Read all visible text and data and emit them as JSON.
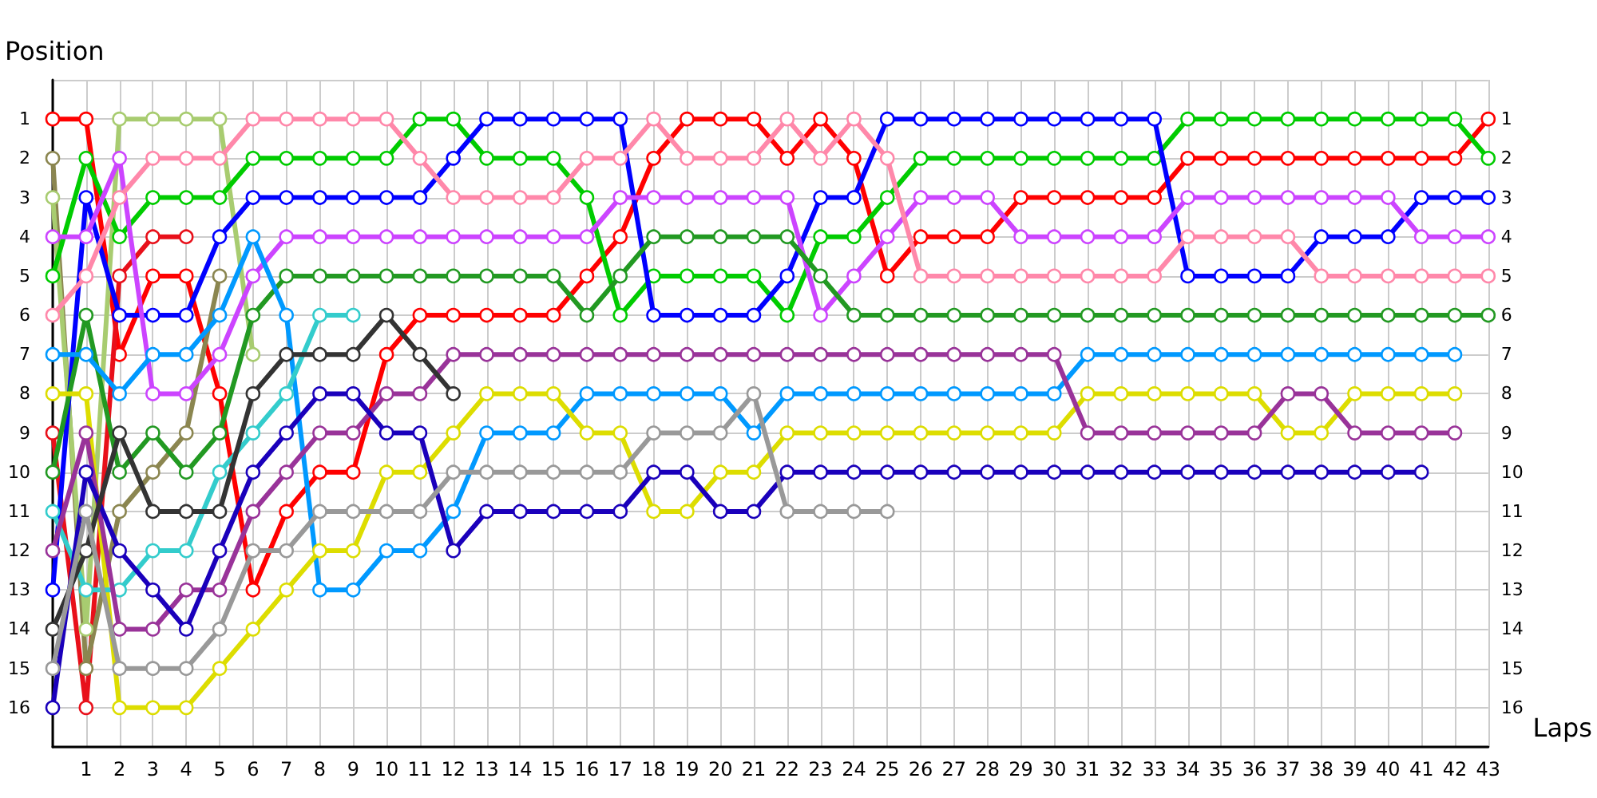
{
  "chart_data": {
    "type": "line",
    "xlabel": "Laps",
    "ylabel": "Position",
    "x": [
      0,
      1,
      2,
      3,
      4,
      5,
      6,
      7,
      8,
      9,
      10,
      11,
      12,
      13,
      14,
      15,
      16,
      17,
      18,
      19,
      20,
      21,
      22,
      23,
      24,
      25,
      26,
      27,
      28,
      29,
      30,
      31,
      32,
      33,
      34,
      35,
      36,
      37,
      38,
      39,
      40,
      41,
      42,
      43
    ],
    "xlim": [
      0,
      43
    ],
    "xticks": [
      1,
      2,
      3,
      4,
      5,
      6,
      7,
      8,
      9,
      10,
      11,
      12,
      13,
      14,
      15,
      16,
      17,
      18,
      19,
      20,
      21,
      22,
      23,
      24,
      25,
      26,
      27,
      28,
      29,
      30,
      31,
      32,
      33,
      34,
      35,
      36,
      37,
      38,
      39,
      40,
      41,
      42,
      43
    ],
    "ylim": [
      17,
      0
    ],
    "yticks": [
      1,
      2,
      3,
      4,
      5,
      6,
      7,
      8,
      9,
      10,
      11,
      12,
      13,
      14,
      15,
      16
    ],
    "y2lim": [
      17,
      0
    ],
    "y2ticks": [
      1,
      2,
      3,
      4,
      5,
      6,
      7,
      8,
      9,
      10,
      11,
      12,
      13,
      14,
      15,
      16
    ],
    "grid": true,
    "marker": "circle",
    "line_style": "solid",
    "series": [
      {
        "color": "#ff0000",
        "values": [
          1,
          1,
          7,
          5,
          5,
          8,
          13,
          11,
          10,
          10,
          7,
          6,
          6,
          6,
          6,
          6,
          5,
          4,
          2,
          1,
          1,
          1,
          2,
          1,
          2,
          5,
          4,
          4,
          4,
          3,
          3,
          3,
          3,
          3,
          2,
          2,
          2,
          2,
          2,
          2,
          2,
          2,
          2,
          1
        ]
      },
      {
        "color": "#e8101a",
        "values": [
          9,
          16,
          5,
          4,
          4,
          null,
          null,
          null,
          null,
          null,
          null,
          null,
          null,
          null,
          null,
          null,
          null,
          null,
          null,
          null,
          null,
          null,
          null,
          null,
          null,
          null,
          null,
          null,
          null,
          null,
          null,
          null,
          null,
          null,
          null,
          null,
          null,
          null,
          null,
          null,
          null,
          null,
          null,
          null
        ]
      },
      {
        "color": "#8b8650",
        "values": [
          2,
          15,
          11,
          10,
          9,
          5,
          null,
          null,
          null,
          null,
          null,
          null,
          null,
          null,
          null,
          null,
          null,
          null,
          null,
          null,
          null,
          null,
          null,
          null,
          null,
          null,
          null,
          null,
          null,
          null,
          null,
          null,
          null,
          null,
          null,
          null,
          null,
          null,
          null,
          null,
          null,
          null,
          null,
          null
        ]
      },
      {
        "color": "#a8cc70",
        "values": [
          3,
          14,
          1,
          1,
          1,
          1,
          7,
          null,
          null,
          null,
          null,
          null,
          null,
          null,
          null,
          null,
          null,
          null,
          null,
          null,
          null,
          null,
          null,
          null,
          null,
          null,
          null,
          null,
          null,
          null,
          null,
          null,
          null,
          null,
          null,
          null,
          null,
          null,
          null,
          null,
          null,
          null,
          null,
          null
        ]
      },
      {
        "color": "#00cc00",
        "values": [
          5,
          2,
          4,
          3,
          3,
          3,
          2,
          2,
          2,
          2,
          2,
          1,
          1,
          2,
          2,
          2,
          3,
          6,
          5,
          5,
          5,
          5,
          6,
          4,
          4,
          3,
          2,
          2,
          2,
          2,
          2,
          2,
          2,
          2,
          1,
          1,
          1,
          1,
          1,
          1,
          1,
          1,
          1,
          2
        ]
      },
      {
        "color": "#0000ff",
        "values": [
          13,
          3,
          6,
          6,
          6,
          4,
          3,
          3,
          3,
          3,
          3,
          3,
          2,
          1,
          1,
          1,
          1,
          1,
          6,
          6,
          6,
          6,
          5,
          3,
          3,
          1,
          1,
          1,
          1,
          1,
          1,
          1,
          1,
          1,
          5,
          5,
          5,
          5,
          4,
          4,
          4,
          3,
          3,
          3
        ]
      },
      {
        "color": "#cc44ff",
        "values": [
          4,
          4,
          2,
          8,
          8,
          7,
          5,
          4,
          4,
          4,
          4,
          4,
          4,
          4,
          4,
          4,
          4,
          3,
          3,
          3,
          3,
          3,
          3,
          6,
          5,
          4,
          3,
          3,
          3,
          4,
          4,
          4,
          4,
          4,
          3,
          3,
          3,
          3,
          3,
          3,
          3,
          4,
          4,
          4
        ]
      },
      {
        "color": "#ff88aa",
        "values": [
          6,
          5,
          3,
          2,
          2,
          2,
          1,
          1,
          1,
          1,
          1,
          2,
          3,
          3,
          3,
          3,
          2,
          2,
          1,
          2,
          2,
          2,
          1,
          2,
          1,
          2,
          5,
          5,
          5,
          5,
          5,
          5,
          5,
          5,
          4,
          4,
          4,
          4,
          5,
          5,
          5,
          5,
          5,
          5
        ]
      },
      {
        "color": "#229922",
        "values": [
          10,
          6,
          10,
          9,
          10,
          9,
          6,
          5,
          5,
          5,
          5,
          5,
          5,
          5,
          5,
          5,
          6,
          5,
          4,
          4,
          4,
          4,
          4,
          5,
          6,
          6,
          6,
          6,
          6,
          6,
          6,
          6,
          6,
          6,
          6,
          6,
          6,
          6,
          6,
          6,
          6,
          6,
          6,
          6
        ]
      },
      {
        "color": "#0099ff",
        "values": [
          7,
          7,
          8,
          7,
          7,
          6,
          4,
          6,
          13,
          13,
          12,
          12,
          11,
          9,
          9,
          9,
          8,
          8,
          8,
          8,
          8,
          9,
          8,
          8,
          8,
          8,
          8,
          8,
          8,
          8,
          8,
          7,
          7,
          7,
          7,
          7,
          7,
          7,
          7,
          7,
          7,
          7,
          7,
          null
        ]
      },
      {
        "color": "#dddd00",
        "values": [
          8,
          8,
          16,
          16,
          16,
          15,
          14,
          13,
          12,
          12,
          10,
          10,
          9,
          8,
          8,
          8,
          9,
          9,
          11,
          11,
          10,
          10,
          9,
          9,
          9,
          9,
          9,
          9,
          9,
          9,
          9,
          8,
          8,
          8,
          8,
          8,
          8,
          9,
          9,
          8,
          8,
          8,
          8,
          null
        ]
      },
      {
        "color": "#33cccc",
        "values": [
          11,
          13,
          13,
          12,
          12,
          10,
          9,
          8,
          6,
          6,
          null,
          null,
          null,
          null,
          null,
          null,
          null,
          null,
          null,
          null,
          null,
          null,
          null,
          null,
          null,
          null,
          null,
          null,
          null,
          null,
          null,
          null,
          null,
          null,
          null,
          null,
          null,
          null,
          null,
          null,
          null,
          null,
          null,
          null
        ]
      },
      {
        "color": "#993399",
        "values": [
          12,
          9,
          14,
          14,
          13,
          13,
          11,
          10,
          9,
          9,
          8,
          8,
          7,
          7,
          7,
          7,
          7,
          7,
          7,
          7,
          7,
          7,
          7,
          7,
          7,
          7,
          7,
          7,
          7,
          7,
          7,
          9,
          9,
          9,
          9,
          9,
          9,
          8,
          8,
          9,
          9,
          9,
          9,
          null
        ]
      },
      {
        "color": "#1a00bb",
        "values": [
          16,
          10,
          12,
          13,
          14,
          12,
          10,
          9,
          8,
          8,
          9,
          9,
          12,
          11,
          11,
          11,
          11,
          11,
          10,
          10,
          11,
          11,
          10,
          10,
          10,
          10,
          10,
          10,
          10,
          10,
          10,
          10,
          10,
          10,
          10,
          10,
          10,
          10,
          10,
          10,
          10,
          10,
          null,
          null
        ]
      },
      {
        "color": "#333333",
        "values": [
          14,
          12,
          9,
          11,
          11,
          11,
          8,
          7,
          7,
          7,
          6,
          7,
          8,
          null,
          null,
          null,
          null,
          null,
          null,
          null,
          null,
          null,
          null,
          null,
          null,
          null,
          null,
          null,
          null,
          null,
          null,
          null,
          null,
          null,
          null,
          null,
          null,
          null,
          null,
          null,
          null,
          null,
          null,
          null
        ]
      },
      {
        "color": "#999999",
        "values": [
          15,
          11,
          15,
          15,
          15,
          14,
          12,
          12,
          11,
          11,
          11,
          11,
          10,
          10,
          10,
          10,
          10,
          10,
          9,
          9,
          9,
          8,
          11,
          11,
          11,
          11,
          null,
          null,
          null,
          null,
          null,
          null,
          null,
          null,
          null,
          null,
          null,
          null,
          null,
          null,
          null,
          null,
          null,
          null
        ]
      }
    ]
  }
}
